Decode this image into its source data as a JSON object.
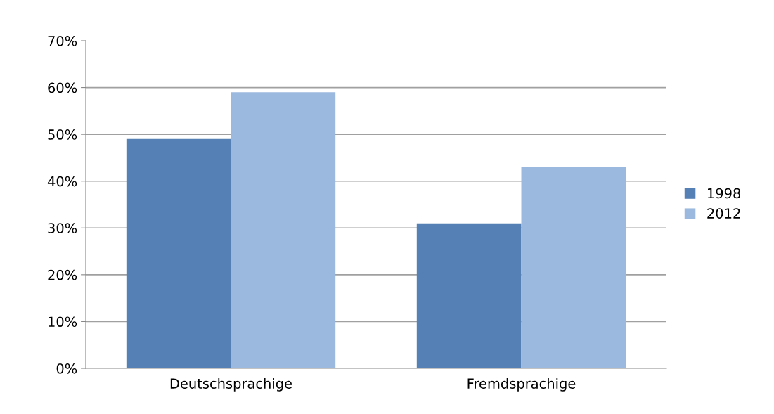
{
  "chart_data": {
    "type": "bar",
    "categories": [
      "Deutschsprachige",
      "Fremdsprachige"
    ],
    "series": [
      {
        "name": "1998",
        "color": "#5580b5",
        "values": [
          49,
          31
        ]
      },
      {
        "name": "2012",
        "color": "#9bb9de",
        "values": [
          59,
          43
        ]
      }
    ],
    "ylim": [
      0,
      70
    ],
    "yticks": [
      {
        "value": 0,
        "label": "0%"
      },
      {
        "value": 10,
        "label": "10%"
      },
      {
        "value": 20,
        "label": "20%"
      },
      {
        "value": 30,
        "label": "30%"
      },
      {
        "value": 40,
        "label": "40%"
      },
      {
        "value": 50,
        "label": "50%"
      },
      {
        "value": 60,
        "label": "60%"
      },
      {
        "value": 70,
        "label": "70%"
      }
    ],
    "grid": "y",
    "legend": "right"
  }
}
